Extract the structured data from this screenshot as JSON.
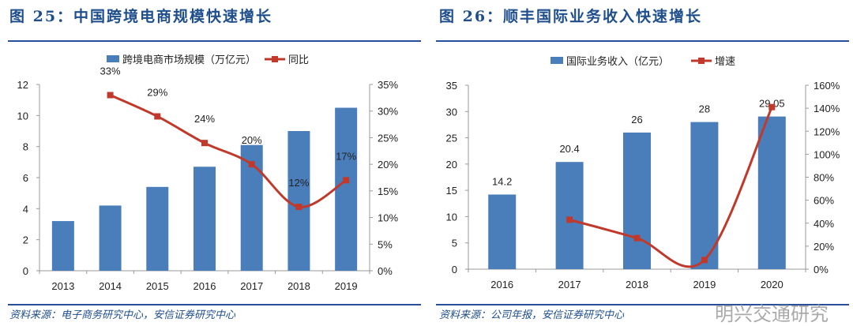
{
  "charts": [
    {
      "title": "图 25：中国跨境电商规模快速增长",
      "source": "资料来源：电子商务研究中心，安信证券研究中心"
    },
    {
      "title": "图 26：顺丰国际业务收入快速增长",
      "source": "资料来源：公司年报，安信证券研究中心"
    }
  ],
  "watermark": "明兴交通研究",
  "colors": {
    "bar": "#4a7ebb",
    "line": "#c0392b",
    "title": "#1f4e8c"
  },
  "chart_data": [
    {
      "type": "bar+line",
      "categories": [
        "2013",
        "2014",
        "2015",
        "2016",
        "2017",
        "2018",
        "2019"
      ],
      "series": [
        {
          "name": "跨境电商市场规模（万亿元）",
          "type": "bar",
          "axis": "left",
          "values": [
            3.2,
            4.2,
            5.4,
            6.7,
            8.1,
            9.0,
            10.5
          ]
        },
        {
          "name": "同比",
          "type": "line",
          "axis": "right",
          "values": [
            null,
            33,
            29,
            24,
            20,
            12,
            17
          ],
          "labels": [
            "",
            "33%",
            "29%",
            "24%",
            "20%",
            "12%",
            "17%"
          ]
        }
      ],
      "ylim": [
        0,
        12
      ],
      "yticks": [
        "0",
        "2",
        "4",
        "6",
        "8",
        "10",
        "12"
      ],
      "y2lim": [
        0,
        35
      ],
      "y2ticks": [
        "0%",
        "5%",
        "10%",
        "15%",
        "20%",
        "25%",
        "30%",
        "35%"
      ],
      "legend": "top"
    },
    {
      "type": "bar+line",
      "categories": [
        "2016",
        "2017",
        "2018",
        "2019",
        "2020"
      ],
      "series": [
        {
          "name": "国际业务收入（亿元）",
          "type": "bar",
          "axis": "left",
          "values": [
            14.2,
            20.4,
            26,
            28,
            29.05
          ],
          "labels": [
            "14.2",
            "20.4",
            "26",
            "28",
            "29.05"
          ]
        },
        {
          "name": "增速",
          "type": "line",
          "axis": "right",
          "values": [
            null,
            43,
            27,
            8,
            141
          ]
        }
      ],
      "ylim": [
        0,
        35
      ],
      "yticks": [
        "0",
        "5",
        "10",
        "15",
        "20",
        "25",
        "30",
        "35"
      ],
      "y2lim": [
        0,
        160
      ],
      "y2ticks": [
        "0%",
        "20%",
        "40%",
        "60%",
        "80%",
        "100%",
        "120%",
        "140%",
        "160%"
      ],
      "legend": "top"
    }
  ]
}
